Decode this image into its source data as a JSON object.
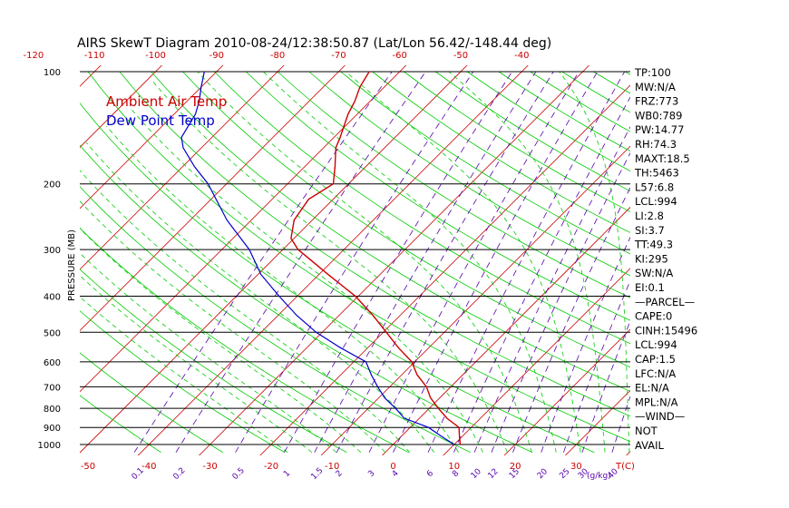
{
  "chart_data": {
    "type": "line",
    "title": "AIRS SkewT Diagram 2010-08-24/12:38:50.87 (Lat/Lon 56.42/-148.44 deg)",
    "ylabel": "PRESSURE (MB)",
    "xunit_label": "T(C)",
    "mix_unit_label": "(g/kg)",
    "pressure_ticks": [
      100,
      200,
      300,
      400,
      500,
      600,
      700,
      800,
      900,
      1000
    ],
    "pressure_range": [
      100,
      1050
    ],
    "bottom_temp_ticks": [
      -50,
      -40,
      -30,
      -20,
      -10,
      0,
      10,
      20,
      30
    ],
    "top_temp_ticks": [
      -120,
      -110,
      -100,
      -90,
      -80,
      -70,
      -60,
      -50,
      -40
    ],
    "mixing_ratio_ticks": [
      "0.1",
      "0.2",
      "0.5",
      "1",
      "1.5",
      "2",
      "3",
      "4",
      "6",
      "8",
      "10",
      "12",
      "15",
      "20",
      "25",
      "30",
      "40"
    ],
    "series": [
      {
        "name": "Ambient Air Temp",
        "color": "#cc0000",
        "points": [
          {
            "p": 1000,
            "t": 11.0
          },
          {
            "p": 950,
            "t": 9.5
          },
          {
            "p": 900,
            "t": 8.0
          },
          {
            "p": 850,
            "t": 4.5
          },
          {
            "p": 800,
            "t": 1.5
          },
          {
            "p": 750,
            "t": -1.5
          },
          {
            "p": 700,
            "t": -4.0
          },
          {
            "p": 650,
            "t": -7.5
          },
          {
            "p": 600,
            "t": -10.5
          },
          {
            "p": 550,
            "t": -15.0
          },
          {
            "p": 500,
            "t": -19.5
          },
          {
            "p": 450,
            "t": -24.5
          },
          {
            "p": 400,
            "t": -30.5
          },
          {
            "p": 350,
            "t": -38.5
          },
          {
            "p": 300,
            "t": -47.5
          },
          {
            "p": 280,
            "t": -50.5
          },
          {
            "p": 250,
            "t": -53.0
          },
          {
            "p": 220,
            "t": -54.0
          },
          {
            "p": 200,
            "t": -52.5
          },
          {
            "p": 180,
            "t": -55.0
          },
          {
            "p": 160,
            "t": -58.0
          },
          {
            "p": 150,
            "t": -59.0
          },
          {
            "p": 130,
            "t": -61.5
          },
          {
            "p": 120,
            "t": -62.5
          },
          {
            "p": 110,
            "t": -64.0
          },
          {
            "p": 100,
            "t": -65.0
          }
        ]
      },
      {
        "name": "Dew Point Temp",
        "color": "#0000cc",
        "points": [
          {
            "p": 1000,
            "t": 10.0
          },
          {
            "p": 950,
            "t": 6.5
          },
          {
            "p": 900,
            "t": 3.0
          },
          {
            "p": 850,
            "t": -2.5
          },
          {
            "p": 800,
            "t": -5.5
          },
          {
            "p": 750,
            "t": -9.0
          },
          {
            "p": 700,
            "t": -12.0
          },
          {
            "p": 650,
            "t": -15.0
          },
          {
            "p": 600,
            "t": -18.0
          },
          {
            "p": 550,
            "t": -24.5
          },
          {
            "p": 500,
            "t": -31.0
          },
          {
            "p": 450,
            "t": -37.0
          },
          {
            "p": 400,
            "t": -43.0
          },
          {
            "p": 350,
            "t": -49.5
          },
          {
            "p": 300,
            "t": -55.5
          },
          {
            "p": 250,
            "t": -64.0
          },
          {
            "p": 200,
            "t": -73.0
          },
          {
            "p": 180,
            "t": -78.0
          },
          {
            "p": 160,
            "t": -83.0
          },
          {
            "p": 150,
            "t": -85.0
          },
          {
            "p": 130,
            "t": -86.5
          },
          {
            "p": 120,
            "t": -88.0
          },
          {
            "p": 110,
            "t": -90.0
          },
          {
            "p": 100,
            "t": -92.0
          }
        ]
      }
    ],
    "stats": [
      "TP:100",
      "MW:N/A",
      "FRZ:773",
      "WB0:789",
      "PW:14.77",
      "RH:74.3",
      "MAXT:18.5",
      "TH:5463",
      "L57:6.8",
      "LCL:994",
      "LI:2.8",
      "SI:3.7",
      "TT:49.3",
      "KI:295",
      "SW:N/A",
      "EI:0.1",
      "—PARCEL—",
      "CAPE:0",
      "CINH:15496",
      "LCL:994",
      "CAP:1.5",
      "LFC:N/A",
      "EL:N/A",
      "MPL:N/A",
      "—WIND—",
      "NOT",
      "AVAIL"
    ],
    "colors": {
      "temp": "#cc0000",
      "dewpoint": "#0000cc",
      "isotherm": "#cc0000",
      "dry_adiabat": "#00cc00",
      "moist_adiabat": "#00cc00",
      "mixing_ratio": "#5500aa",
      "isobar": "#000000"
    }
  }
}
